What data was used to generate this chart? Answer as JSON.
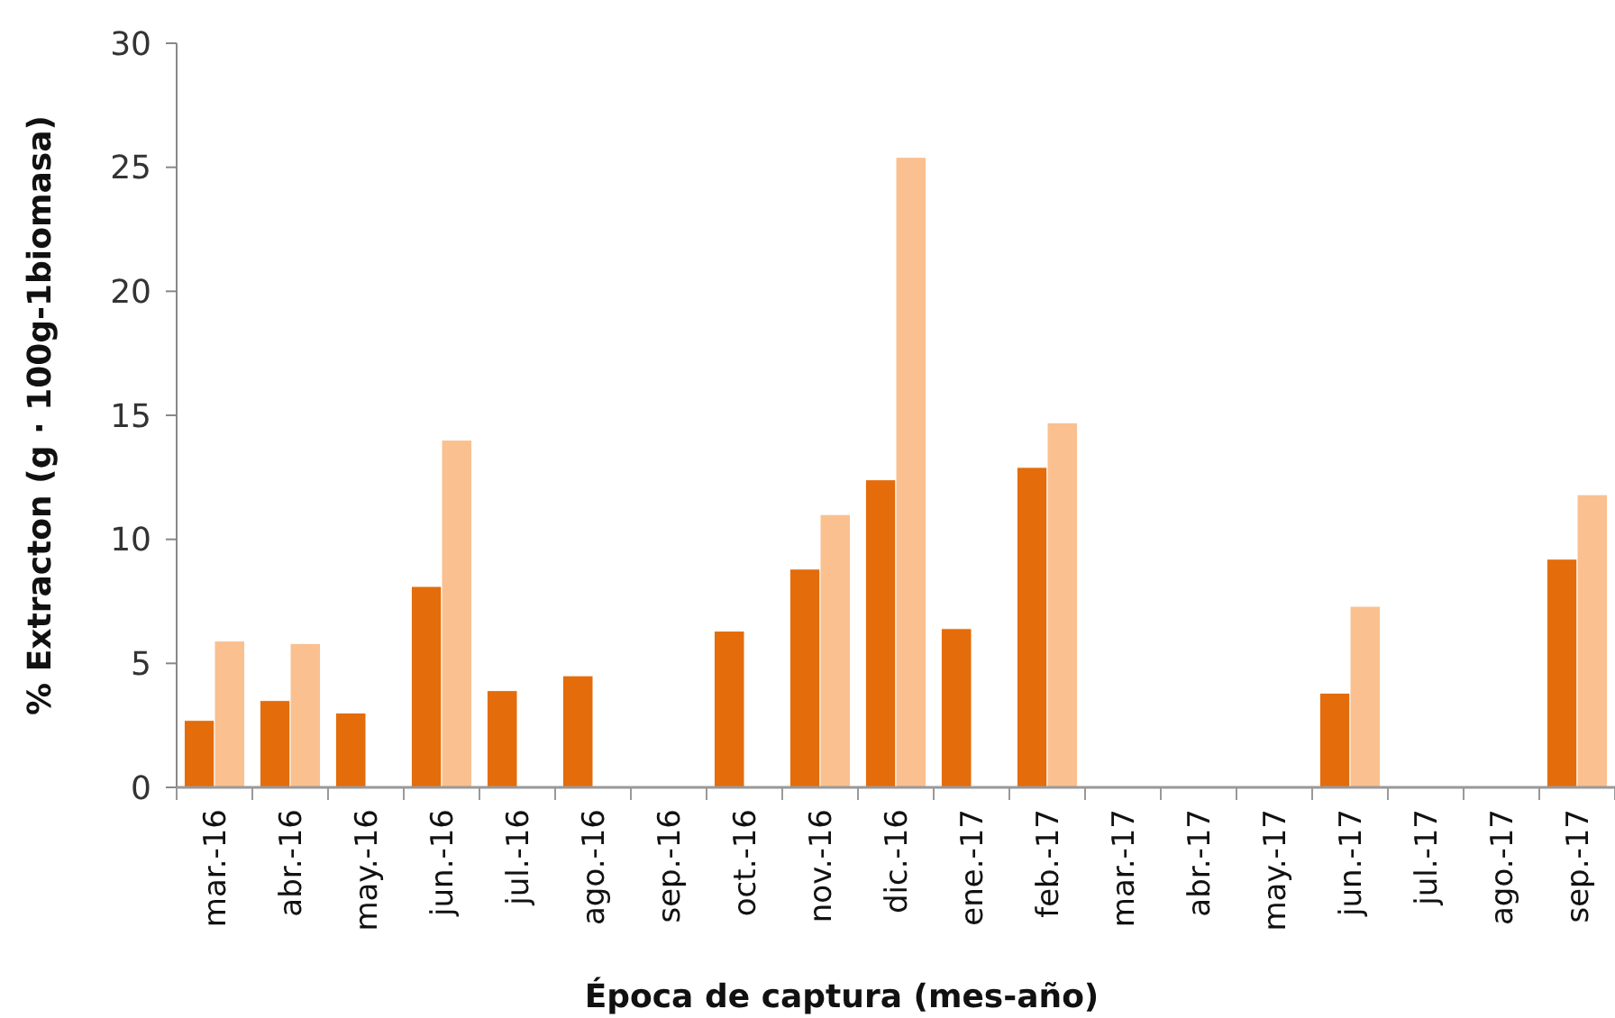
{
  "chart_data": {
    "type": "bar",
    "xlabel": "Época de captura (mes-año)",
    "ylabel": "% Extracton (g · 100g-1biomasa)",
    "categories": [
      "mar.-16",
      "abr.-16",
      "may.-16",
      "jun.-16",
      "jul.-16",
      "ago.-16",
      "sep.-16",
      "oct.-16",
      "nov.-16",
      "dic.-16",
      "ene.-17",
      "feb.-17",
      "mar.-17",
      "abr.-17",
      "may.-17",
      "jun.-17",
      "jul.-17",
      "ago.-17",
      "sep.-17"
    ],
    "series": [
      {
        "color": "#e46c0a",
        "values": [
          2.7,
          3.5,
          3.0,
          8.1,
          3.9,
          4.5,
          null,
          6.3,
          8.8,
          12.4,
          6.4,
          12.9,
          null,
          null,
          null,
          3.8,
          null,
          null,
          9.2
        ]
      },
      {
        "color": "#fac090",
        "values": [
          5.9,
          5.8,
          null,
          14.0,
          null,
          null,
          null,
          null,
          11.0,
          25.4,
          null,
          14.7,
          null,
          null,
          null,
          7.3,
          null,
          null,
          11.8
        ]
      }
    ],
    "ylim": [
      0,
      30
    ],
    "yticks": [
      0,
      5,
      10,
      15,
      20,
      25,
      30
    ],
    "grid": false
  }
}
